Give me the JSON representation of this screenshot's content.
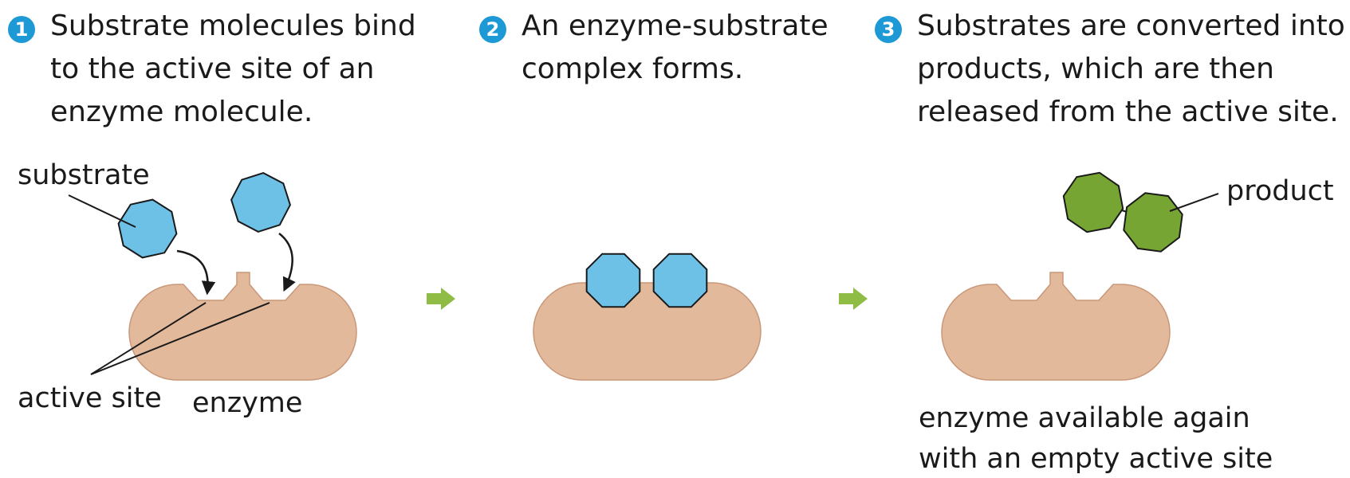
{
  "steps": [
    {
      "number": "1",
      "lines": [
        "Substrate molecules bind",
        "to the active site of an",
        "enzyme molecule."
      ]
    },
    {
      "number": "2",
      "lines": [
        "An enzyme-substrate",
        "complex forms."
      ]
    },
    {
      "number": "3",
      "lines": [
        "Substrates are converted into",
        "products, which are then",
        "released from the active site."
      ]
    }
  ],
  "labels": {
    "substrate": "substrate",
    "active_site": "active site",
    "enzyme": "enzyme",
    "product": "product",
    "enzyme_available_line1": "enzyme available again",
    "enzyme_available_line2": "with an empty active site"
  },
  "colors": {
    "enzyme": "#e3b99b",
    "enzyme_stroke": "#c99779",
    "substrate": "#6ec1e6",
    "product": "#76a533",
    "step_badge": "#1d9ad6",
    "arrow": "#8fbc45"
  }
}
